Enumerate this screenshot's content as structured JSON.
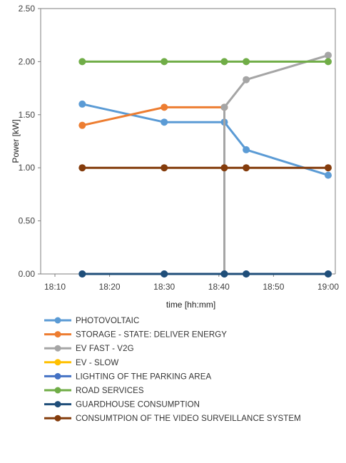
{
  "chart_data": {
    "type": "line",
    "xlabel": "time [hh:mm]",
    "ylabel": "Power [kW]",
    "x_ticks": [
      "18:10",
      "18:20",
      "18:30",
      "18:40",
      "18:50",
      "19:00"
    ],
    "x_tick_minutes": [
      10,
      20,
      30,
      40,
      50,
      60
    ],
    "xlim": [
      "18:10",
      "19:00"
    ],
    "y_ticks": [
      "0.00",
      "0.50",
      "1.00",
      "1.50",
      "2.00",
      "2.50"
    ],
    "ylim": [
      0,
      2.5
    ],
    "grid": false,
    "legend_position": "bottom",
    "series": [
      {
        "name": "PHOTOVOLTAIC",
        "color": "#5b9bd5",
        "points": [
          [
            "18:15",
            1.6
          ],
          [
            "18:30",
            1.43
          ],
          [
            "18:41",
            1.43
          ],
          [
            "18:45",
            1.17
          ],
          [
            "19:00",
            0.93
          ]
        ]
      },
      {
        "name": "STORAGE - STATE: DELIVER ENERGY",
        "color": "#ed7d31",
        "points": [
          [
            "18:15",
            1.4
          ],
          [
            "18:30",
            1.57
          ],
          [
            "18:41",
            1.57
          ]
        ]
      },
      {
        "name": "EV FAST - V2G",
        "color": "#a5a5a5",
        "points": [
          [
            "18:41",
            0.0
          ],
          [
            "18:41",
            1.57
          ],
          [
            "18:45",
            1.83
          ],
          [
            "19:00",
            2.06
          ]
        ]
      },
      {
        "name": "EV - SLOW",
        "color": "#ffc000",
        "points": []
      },
      {
        "name": "LIGHTING OF THE PARKING AREA",
        "color": "#4472c4",
        "points": [
          [
            "18:15",
            0.0
          ],
          [
            "18:30",
            0.0
          ],
          [
            "18:41",
            0.0
          ],
          [
            "18:45",
            0.0
          ],
          [
            "19:00",
            0.0
          ]
        ]
      },
      {
        "name": "ROAD SERVICES",
        "color": "#70ad47",
        "points": [
          [
            "18:15",
            2.0
          ],
          [
            "18:30",
            2.0
          ],
          [
            "18:41",
            2.0
          ],
          [
            "18:45",
            2.0
          ],
          [
            "19:00",
            2.0
          ]
        ]
      },
      {
        "name": "GUARDHOUSE CONSUMPTION",
        "color": "#1f4e79",
        "points": [
          [
            "18:15",
            0.0
          ],
          [
            "18:30",
            0.0
          ],
          [
            "18:41",
            0.0
          ],
          [
            "18:45",
            0.0
          ],
          [
            "19:00",
            0.0
          ]
        ]
      },
      {
        "name": "CONSUMTPION OF THE VIDEO SURVEILLANCE SYSTEM",
        "color": "#843c0c",
        "points": [
          [
            "18:15",
            1.0
          ],
          [
            "18:30",
            1.0
          ],
          [
            "18:41",
            1.0
          ],
          [
            "18:45",
            1.0
          ],
          [
            "19:00",
            1.0
          ]
        ]
      }
    ]
  }
}
